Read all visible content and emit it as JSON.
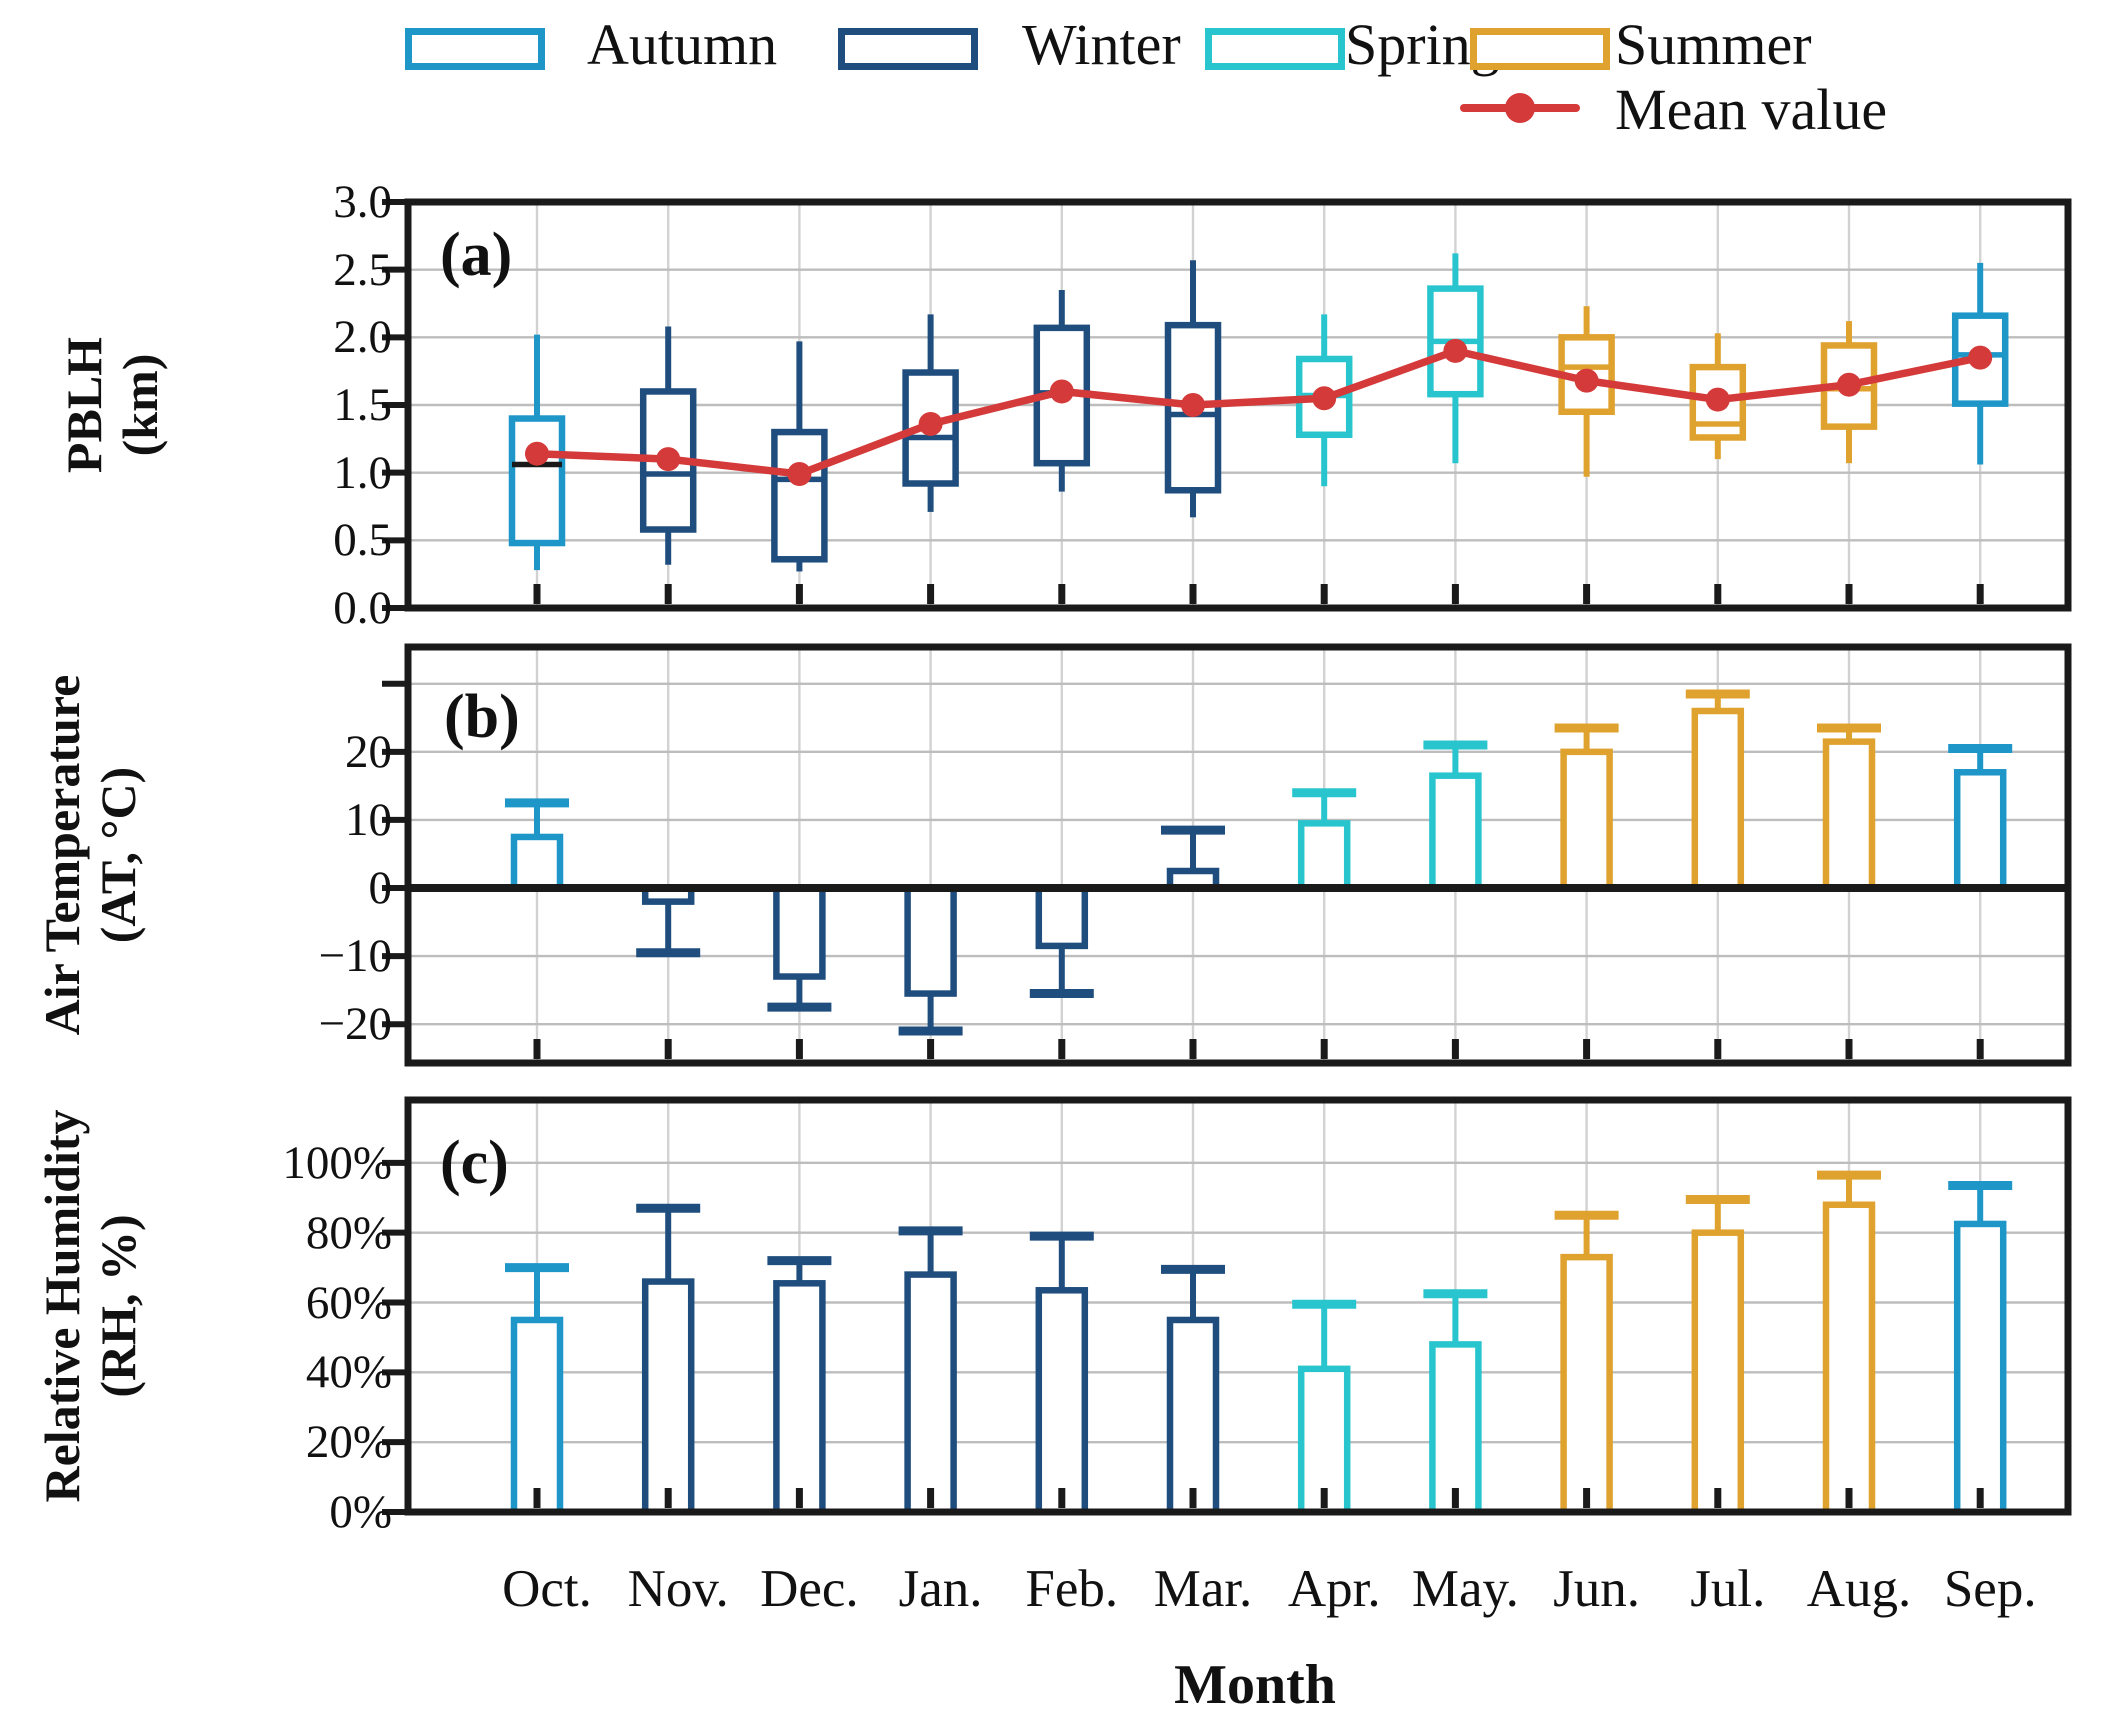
{
  "legend": {
    "items": [
      {
        "label": "Autumn",
        "color": "#1E96C8"
      },
      {
        "label": "Winter",
        "color": "#1F4E7E"
      },
      {
        "label": "Spring",
        "color": "#29C5CE"
      },
      {
        "label": "Summer",
        "color": "#E0A22E"
      }
    ],
    "mean": {
      "label": "Mean value",
      "color": "#D43A3A"
    }
  },
  "xlabel": "Month",
  "months": [
    "Oct.",
    "Nov.",
    "Dec.",
    "Jan.",
    "Feb.",
    "Mar.",
    "Apr.",
    "May.",
    "Jun.",
    "Jul.",
    "Aug.",
    "Sep."
  ],
  "colors": {
    "autumn": "#1E96C8",
    "winter": "#1F4E7E",
    "spring": "#29C5CE",
    "summer": "#E0A22E",
    "mean": "#D43A3A",
    "grid_h": "#bdbdbd",
    "grid_v": "#d2d2d2",
    "axis": "#1a1a1a",
    "median_dark": "#1a1a1a"
  },
  "chart_data": [
    {
      "type": "box",
      "panel_label": "(a)",
      "ylabel": "PBLH (km)",
      "ylabel_lines": [
        "PBLH",
        "(km)"
      ],
      "ylim": [
        0.0,
        3.0
      ],
      "yticks": [
        {
          "v": 3.0,
          "label": "3.0"
        },
        {
          "v": 2.5,
          "label": "2.5"
        },
        {
          "v": 2.0,
          "label": "2.0"
        },
        {
          "v": 1.5,
          "label": "1.5"
        },
        {
          "v": 1.0,
          "label": "1.0"
        },
        {
          "v": 0.5,
          "label": "0.5"
        },
        {
          "v": 0.0,
          "label": "0.0"
        }
      ],
      "gridlines": [
        2.5,
        2.0,
        1.5,
        1.0,
        0.5
      ],
      "categories": [
        "Oct.",
        "Nov.",
        "Dec.",
        "Jan.",
        "Feb.",
        "Mar.",
        "Apr.",
        "May.",
        "Jun.",
        "Jul.",
        "Aug.",
        "Sep."
      ],
      "boxes": [
        {
          "month": "Oct.",
          "season": "autumn",
          "whislo": 0.28,
          "q1": 0.48,
          "med": 1.06,
          "q3": 1.4,
          "whishi": 2.02,
          "mean": 1.14,
          "med_dark": true
        },
        {
          "month": "Nov.",
          "season": "winter",
          "whislo": 0.32,
          "q1": 0.58,
          "med": 0.99,
          "q3": 1.6,
          "whishi": 2.08,
          "mean": 1.1
        },
        {
          "month": "Dec.",
          "season": "winter",
          "whislo": 0.27,
          "q1": 0.36,
          "med": 0.95,
          "q3": 1.3,
          "whishi": 1.97,
          "mean": 0.99
        },
        {
          "month": "Jan.",
          "season": "winter",
          "whislo": 0.71,
          "q1": 0.92,
          "med": 1.26,
          "q3": 1.74,
          "whishi": 2.17,
          "mean": 1.36
        },
        {
          "month": "Feb.",
          "season": "winter",
          "whislo": 0.86,
          "q1": 1.07,
          "med": 1.59,
          "q3": 2.07,
          "whishi": 2.35,
          "mean": 1.6
        },
        {
          "month": "Mar.",
          "season": "winter",
          "whislo": 0.67,
          "q1": 0.87,
          "med": 1.43,
          "q3": 2.09,
          "whishi": 2.57,
          "mean": 1.5
        },
        {
          "month": "Apr.",
          "season": "spring",
          "whislo": 0.9,
          "q1": 1.28,
          "med": 1.57,
          "q3": 1.84,
          "whishi": 2.17,
          "mean": 1.55
        },
        {
          "month": "May.",
          "season": "spring",
          "whislo": 1.07,
          "q1": 1.58,
          "med": 1.97,
          "q3": 2.36,
          "whishi": 2.62,
          "mean": 1.9
        },
        {
          "month": "Jun.",
          "season": "summer",
          "whislo": 0.97,
          "q1": 1.45,
          "med": 1.78,
          "q3": 2.0,
          "whishi": 2.23,
          "mean": 1.68
        },
        {
          "month": "Jul.",
          "season": "summer",
          "whislo": 1.1,
          "q1": 1.26,
          "med": 1.36,
          "q3": 1.78,
          "whishi": 2.03,
          "mean": 1.54
        },
        {
          "month": "Aug.",
          "season": "summer",
          "whislo": 1.07,
          "q1": 1.34,
          "med": 1.62,
          "q3": 1.94,
          "whishi": 2.12,
          "mean": 1.65
        },
        {
          "month": "Sep.",
          "season": "autumn",
          "whislo": 1.06,
          "q1": 1.51,
          "med": 1.87,
          "q3": 2.16,
          "whishi": 2.55,
          "mean": 1.85
        }
      ],
      "mean_line": true
    },
    {
      "type": "bar",
      "panel_label": "(b)",
      "ylabel": "Air Temperature (AT, °C)",
      "ylabel_lines": [
        "Air Temperature",
        "(AT, °C)"
      ],
      "ylim": [
        -25.7,
        35.4
      ],
      "yticks": [
        {
          "v": 20,
          "label": "20"
        },
        {
          "v": 10,
          "label": "10"
        },
        {
          "v": 0,
          "label": "0"
        },
        {
          "v": -10,
          "label": "−10"
        },
        {
          "v": -20,
          "label": "−20"
        }
      ],
      "tick_only": [
        30
      ],
      "gridlines": [
        30,
        20,
        10,
        -10,
        -20
      ],
      "zero_line": true,
      "categories": [
        "Oct.",
        "Nov.",
        "Dec.",
        "Jan.",
        "Feb.",
        "Mar.",
        "Apr.",
        "May.",
        "Jun.",
        "Jul.",
        "Aug.",
        "Sep."
      ],
      "bars": [
        {
          "month": "Oct.",
          "season": "autumn",
          "value": 7.5,
          "err": 12.5
        },
        {
          "month": "Nov.",
          "season": "winter",
          "value": -2,
          "err": -9.5
        },
        {
          "month": "Dec.",
          "season": "winter",
          "value": -13,
          "err": -17.5
        },
        {
          "month": "Jan.",
          "season": "winter",
          "value": -15.5,
          "err": -21
        },
        {
          "month": "Feb.",
          "season": "winter",
          "value": -8.5,
          "err": -15.5
        },
        {
          "month": "Mar.",
          "season": "winter",
          "value": 2.5,
          "err": 8.5
        },
        {
          "month": "Apr.",
          "season": "spring",
          "value": 9.5,
          "err": 14
        },
        {
          "month": "May.",
          "season": "spring",
          "value": 16.5,
          "err": 21
        },
        {
          "month": "Jun.",
          "season": "summer",
          "value": 20,
          "err": 23.5
        },
        {
          "month": "Jul.",
          "season": "summer",
          "value": 26,
          "err": 28.5
        },
        {
          "month": "Aug.",
          "season": "summer",
          "value": 21.5,
          "err": 23.5
        },
        {
          "month": "Sep.",
          "season": "autumn",
          "value": 17,
          "err": 20.5
        }
      ]
    },
    {
      "type": "bar",
      "panel_label": "(c)",
      "ylabel": "Relative Humidity (RH, %)",
      "ylabel_lines": [
        "Relative Humidity",
        "(RH, %)"
      ],
      "ylim": [
        0,
        118
      ],
      "yticks": [
        {
          "v": 100,
          "label": "100%"
        },
        {
          "v": 80,
          "label": "80%"
        },
        {
          "v": 60,
          "label": "60%"
        },
        {
          "v": 40,
          "label": "40%"
        },
        {
          "v": 20,
          "label": "20%"
        },
        {
          "v": 0,
          "label": "0%"
        }
      ],
      "gridlines": [
        100,
        80,
        60,
        40,
        20
      ],
      "categories": [
        "Oct.",
        "Nov.",
        "Dec.",
        "Jan.",
        "Feb.",
        "Mar.",
        "Apr.",
        "May.",
        "Jun.",
        "Jul.",
        "Aug.",
        "Sep."
      ],
      "bars": [
        {
          "month": "Oct.",
          "season": "autumn",
          "value": 55,
          "err": 70
        },
        {
          "month": "Nov.",
          "season": "winter",
          "value": 66,
          "err": 87
        },
        {
          "month": "Dec.",
          "season": "winter",
          "value": 65.5,
          "err": 72
        },
        {
          "month": "Jan.",
          "season": "winter",
          "value": 68,
          "err": 80.5
        },
        {
          "month": "Feb.",
          "season": "winter",
          "value": 63.5,
          "err": 79
        },
        {
          "month": "Mar.",
          "season": "winter",
          "value": 55,
          "err": 69.5
        },
        {
          "month": "Apr.",
          "season": "spring",
          "value": 41,
          "err": 59.5
        },
        {
          "month": "May.",
          "season": "spring",
          "value": 48,
          "err": 62.5
        },
        {
          "month": "Jun.",
          "season": "summer",
          "value": 73,
          "err": 85
        },
        {
          "month": "Jul.",
          "season": "summer",
          "value": 80,
          "err": 89.5
        },
        {
          "month": "Aug.",
          "season": "summer",
          "value": 88,
          "err": 96.5
        },
        {
          "month": "Sep.",
          "season": "autumn",
          "value": 82.5,
          "err": 93.5
        }
      ]
    }
  ]
}
